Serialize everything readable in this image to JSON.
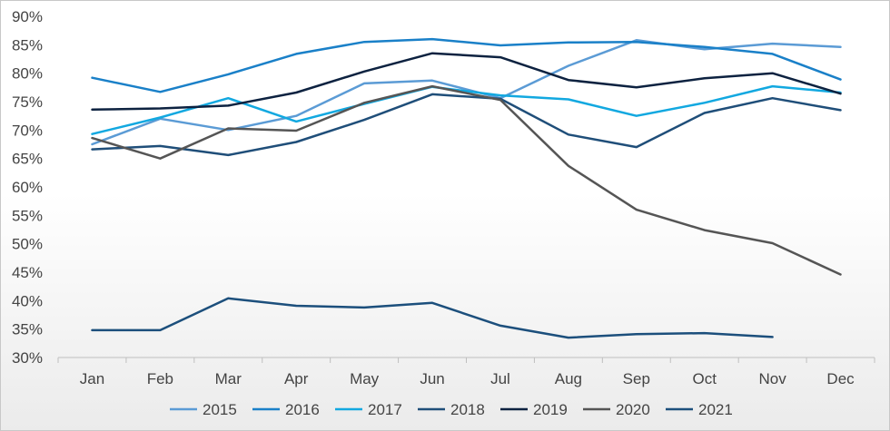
{
  "chart_data": {
    "type": "line",
    "title": "",
    "xlabel": "",
    "ylabel": "",
    "categories": [
      "Jan",
      "Feb",
      "Mar",
      "Apr",
      "May",
      "Jun",
      "Jul",
      "Aug",
      "Sep",
      "Oct",
      "Nov",
      "Dec"
    ],
    "y_ticks": [
      "30%",
      "35%",
      "40%",
      "45%",
      "50%",
      "55%",
      "60%",
      "65%",
      "70%",
      "75%",
      "80%",
      "85%",
      "90%"
    ],
    "ylim": [
      30,
      90
    ],
    "grid": false,
    "legend_position": "bottom",
    "series": [
      {
        "name": "2015",
        "color": "#5b9bd5",
        "values": [
          67.5,
          72,
          70,
          72.5,
          78.2,
          78.7,
          75.6,
          81.3,
          85.8,
          84.2,
          85.2,
          84.6
        ]
      },
      {
        "name": "2016",
        "color": "#1a80c8",
        "values": [
          79.2,
          76.7,
          79.8,
          83.4,
          85.5,
          86.0,
          84.9,
          85.4,
          85.5,
          84.6,
          83.4,
          78.9
        ]
      },
      {
        "name": "2017",
        "color": "#12a8e0",
        "values": [
          69.3,
          72.2,
          75.6,
          71.5,
          74.6,
          77.6,
          76.1,
          75.4,
          72.5,
          74.8,
          77.7,
          76.6
        ]
      },
      {
        "name": "2018",
        "color": "#1f4e79",
        "values": [
          66.6,
          67.2,
          65.6,
          67.9,
          71.8,
          76.3,
          75.5,
          69.2,
          67.0,
          73.0,
          75.6,
          73.5
        ]
      },
      {
        "name": "2019",
        "color": "#0d2240",
        "values": [
          73.6,
          73.8,
          74.3,
          76.6,
          80.3,
          83.5,
          82.8,
          78.8,
          77.5,
          79.1,
          80.0,
          76.4
        ]
      },
      {
        "name": "2020",
        "color": "#555555",
        "values": [
          68.6,
          65.0,
          70.3,
          69.9,
          74.8,
          77.7,
          75.3,
          63.7,
          56.0,
          52.4,
          50.1,
          44.6
        ]
      },
      {
        "name": "2021",
        "color": "#1c4f7c",
        "values": [
          34.8,
          34.8,
          40.4,
          39.1,
          38.8,
          39.6,
          35.6,
          33.5,
          34.1,
          34.3,
          33.6,
          null
        ]
      }
    ]
  }
}
